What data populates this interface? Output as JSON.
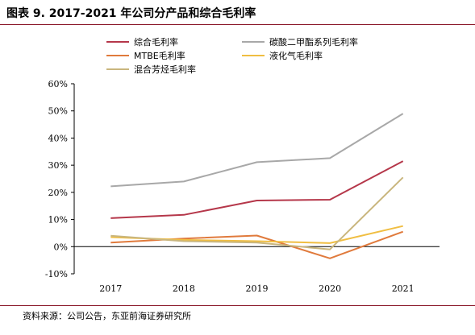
{
  "title": "图表 9.   2017-2021 年公司分产品和综合毛利率",
  "source": "资料来源：公司公告，东亚前海证券研究所",
  "chart_data": {
    "type": "line",
    "categories": [
      "2017",
      "2018",
      "2019",
      "2020",
      "2021"
    ],
    "ylim": [
      -10,
      60
    ],
    "yticks": [
      -10,
      0,
      10,
      20,
      30,
      40,
      50,
      60
    ],
    "ytick_labels": [
      "-10%",
      "0%",
      "10%",
      "20%",
      "30%",
      "40%",
      "50%",
      "60%"
    ],
    "grid": false,
    "legend_position": "top",
    "series": [
      {
        "name": "综合毛利率",
        "color": "#b5374a",
        "values": [
          10.5,
          11.7,
          17.0,
          17.3,
          31.5
        ]
      },
      {
        "name": "碳酸二甲酯系列毛利率",
        "color": "#a8a8a8",
        "values": [
          22.2,
          24.0,
          31.1,
          32.6,
          49.0
        ]
      },
      {
        "name": "MTBE毛利率",
        "color": "#e07a3c",
        "values": [
          1.5,
          3.0,
          4.1,
          -4.3,
          5.5
        ]
      },
      {
        "name": "液化气毛利率",
        "color": "#f0be42",
        "values": [
          3.5,
          2.5,
          2.0,
          1.3,
          7.6
        ]
      },
      {
        "name": "混合芳烃毛利率",
        "color": "#c9b67e",
        "values": [
          4.0,
          2.0,
          1.5,
          -1.0,
          25.5
        ]
      }
    ]
  }
}
